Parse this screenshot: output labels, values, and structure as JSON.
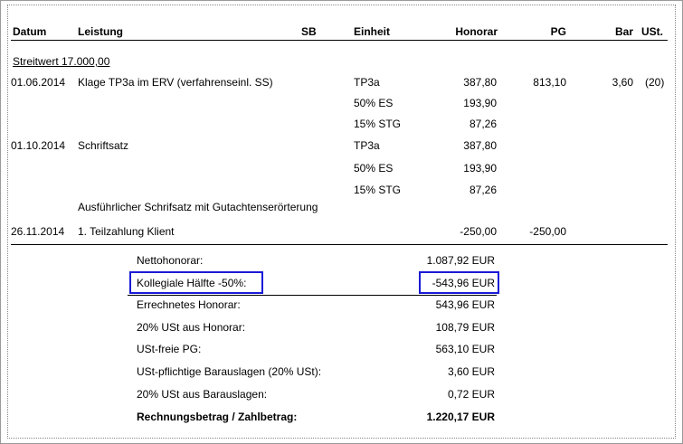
{
  "header": {
    "datum": "Datum",
    "leistung": "Leistung",
    "sb": "SB",
    "einheit": "Einheit",
    "honorar": "Honorar",
    "pg": "PG",
    "bar": "Bar",
    "ust": "USt."
  },
  "streitwert": "Streitwert 17.000,00",
  "rows": [
    {
      "datum": "01.06.2014",
      "leistung": "Klage TP3a im ERV (verfahrenseinl. SS)",
      "einheit": "TP3a",
      "honorar": "387,80",
      "pg": "813,10",
      "bar": "3,60",
      "ust": "(20)"
    },
    {
      "einheit": "50% ES",
      "honorar": "193,90"
    },
    {
      "einheit": "15% STG",
      "honorar": "87,26"
    },
    {
      "datum": "01.10.2014",
      "leistung": "Schriftsatz",
      "einheit": "TP3a",
      "honorar": "387,80"
    },
    {
      "einheit": "50% ES",
      "honorar": "193,90"
    },
    {
      "einheit": "15% STG",
      "honorar": "87,26"
    },
    {
      "leistung": "Ausführlicher Schrifsatz mit Gutachtenserörterung"
    },
    {
      "datum": "26.11.2014",
      "leistung": "1. Teilzahlung Klient",
      "honorar": "-250,00",
      "pg": "-250,00"
    }
  ],
  "summary": [
    {
      "label": "Nettohonorar:",
      "value": "1.087,92 EUR"
    },
    {
      "label": "Kollegiale Hälfte -50%:",
      "value": "-543,96 EUR"
    },
    {
      "label": "Errechnetes Honorar:",
      "value": "543,96 EUR"
    },
    {
      "label": "20% USt aus Honorar:",
      "value": "108,79 EUR"
    },
    {
      "label": "USt-freie PG:",
      "value": "563,10 EUR"
    },
    {
      "label": "USt-pflichtige Barauslagen (20% USt):",
      "value": "3,60 EUR"
    },
    {
      "label": "20% USt aus Barauslagen:",
      "value": "0,72 EUR"
    },
    {
      "label": "Rechnungsbetrag / Zahlbetrag:",
      "value": "1.220,17 EUR"
    }
  ],
  "colors": {
    "highlight_box": "#1a1ad6"
  }
}
